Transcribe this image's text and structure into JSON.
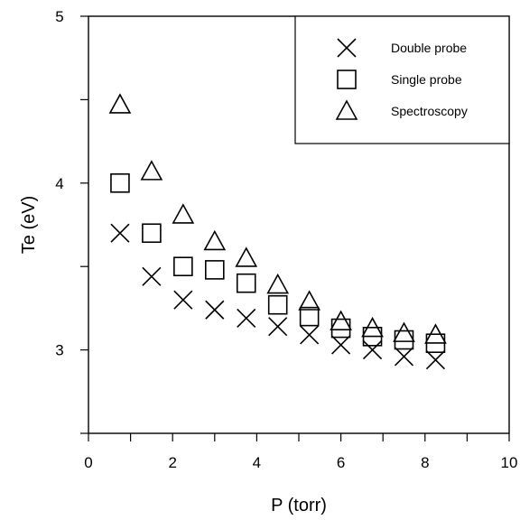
{
  "chart_data": {
    "type": "scatter",
    "xlabel": "P (torr)",
    "ylabel": "Te (eV)",
    "xlim": [
      0,
      10
    ],
    "ylim": [
      2.5,
      5
    ],
    "x_ticks": [
      0,
      2,
      4,
      6,
      8,
      10
    ],
    "y_ticks": [
      3,
      4,
      5
    ],
    "grid": false,
    "legend_position": "top-right",
    "series": [
      {
        "name": "Double probe",
        "marker": "x",
        "x": [
          0.75,
          1.5,
          2.25,
          3.0,
          3.75,
          4.5,
          5.25,
          6.0,
          6.75,
          7.5,
          8.25
        ],
        "y": [
          3.7,
          3.44,
          3.3,
          3.24,
          3.19,
          3.14,
          3.09,
          3.03,
          3.0,
          2.96,
          2.94
        ]
      },
      {
        "name": "Single probe",
        "marker": "square",
        "x": [
          0.75,
          1.5,
          2.25,
          3.0,
          3.75,
          4.5,
          5.25,
          6.0,
          6.75,
          7.5,
          8.25
        ],
        "y": [
          4.0,
          3.7,
          3.5,
          3.48,
          3.4,
          3.27,
          3.2,
          3.13,
          3.08,
          3.06,
          3.04
        ]
      },
      {
        "name": "Spectroscopy",
        "marker": "triangle",
        "x": [
          0.75,
          1.5,
          2.25,
          3.0,
          3.75,
          4.5,
          5.25,
          6.0,
          6.75,
          7.5,
          8.25
        ],
        "y": [
          4.47,
          4.07,
          3.81,
          3.65,
          3.55,
          3.39,
          3.29,
          3.17,
          3.13,
          3.1,
          3.09
        ]
      }
    ]
  }
}
